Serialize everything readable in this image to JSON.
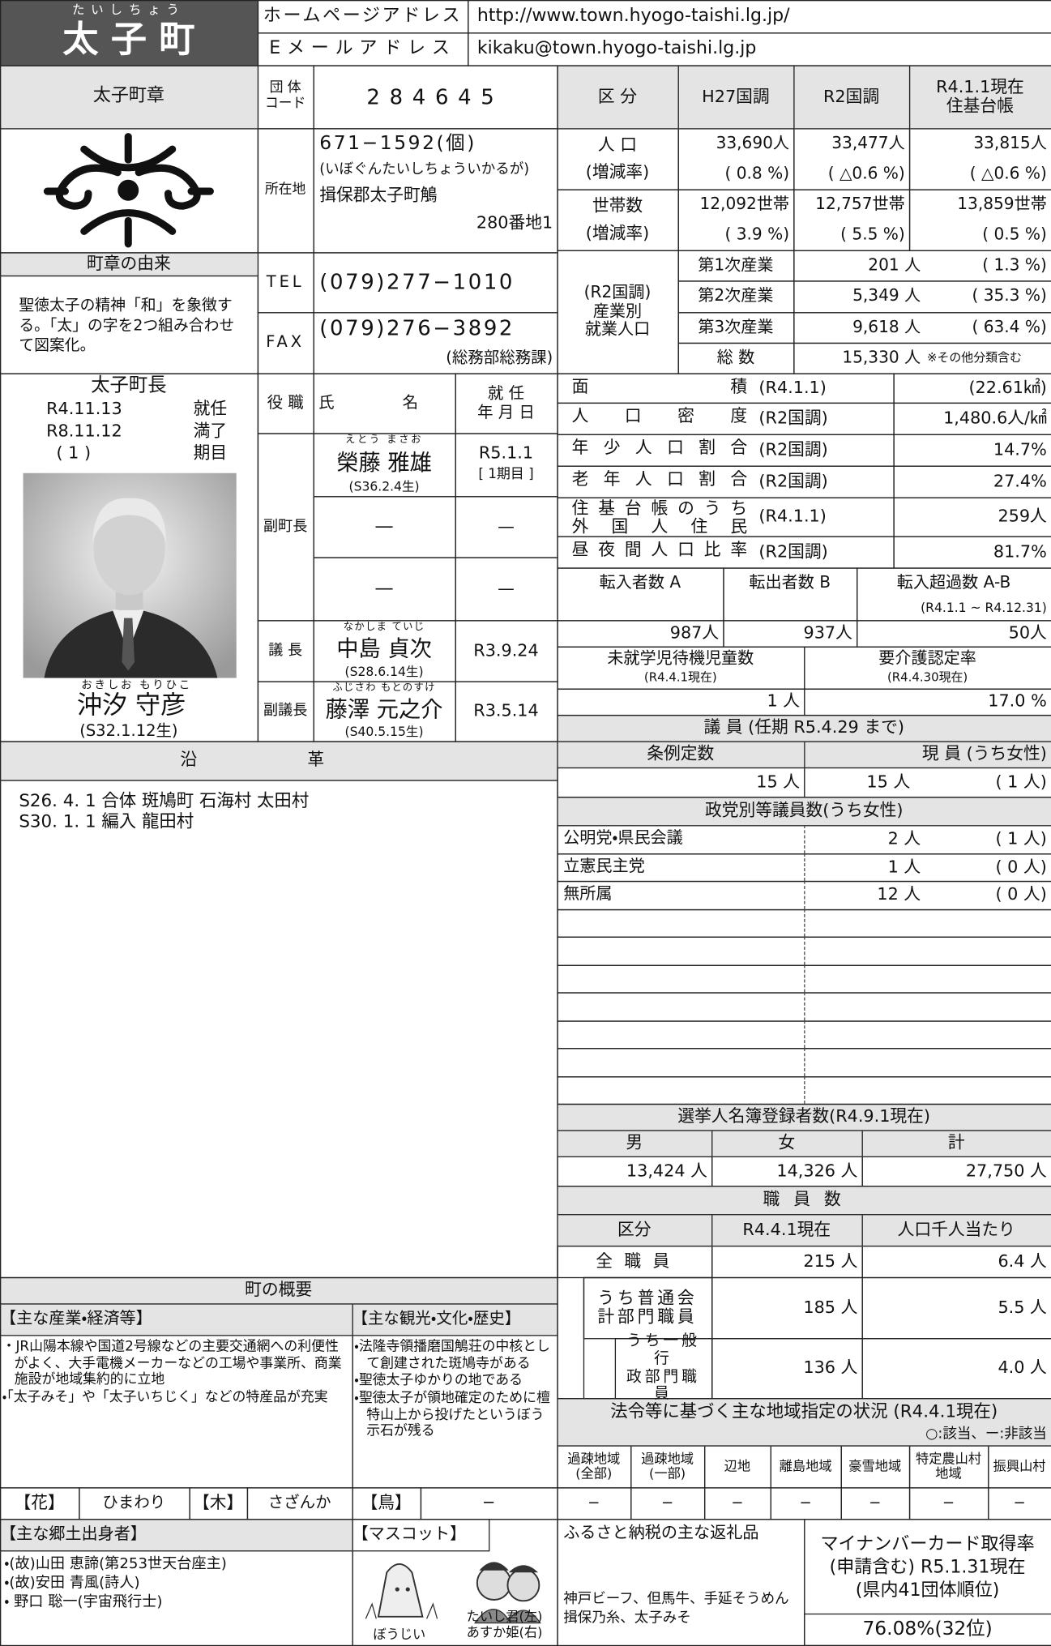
{
  "header": {
    "title_ruby": "たいしちょう",
    "title": "太 子 町",
    "homepage_label": "ホームページアドレス",
    "homepage": "http://www.town.hyogo-taishi.lg.jp/",
    "email_label": "Eメールアドレス",
    "email": "kikaku@town.hyogo-taishi.lg.jp"
  },
  "emblem": {
    "title": "太子町章",
    "origin_title": "町章の由来",
    "origin": "聖徳太子の精神「和」を象徴する。「太」の字を2つ組み合わせて図案化。"
  },
  "info": {
    "code_label": "団 体\nコード",
    "code": "284645",
    "address_label": "所在地",
    "postal": "671−1592(個)",
    "address_reading": "(いぼぐんたいしちょういかるが)",
    "address1": "揖保郡太子町鵤",
    "address2": "280番地1",
    "tel_label": "TEL",
    "tel": "(079)277−1010",
    "fax_label": "FAX",
    "fax": "(079)276−3892",
    "fax_note": "(総務部総務課)"
  },
  "population": {
    "headers": [
      "区 分",
      "H27国調",
      "R2国調",
      "R4.1.1現在\n住基台帳"
    ],
    "rows": [
      {
        "label": "人 口\n(増減率)",
        "values": [
          [
            "33,690人",
            "( 0.8 %)"
          ],
          [
            "33,477人",
            "( △0.6 %)"
          ],
          [
            "33,815人",
            "( △0.6 %)"
          ]
        ]
      },
      {
        "label": "世帯数\n(増減率)",
        "values": [
          [
            "12,092世帯",
            "( 3.9 %)"
          ],
          [
            "12,757世帯",
            "( 5.5 %)"
          ],
          [
            "13,859世帯",
            "( 0.5 %)"
          ]
        ]
      }
    ]
  },
  "industry": {
    "label": "(R2国調)\n産業別\n就業人口",
    "rows": [
      [
        "第1次産業",
        "201 人",
        "( 1.3 %)"
      ],
      [
        "第2次産業",
        "5,349 人",
        "( 35.3 %)"
      ],
      [
        "第3次産業",
        "9,618 人",
        "( 63.4 %)"
      ],
      [
        "総 数",
        "15,330 人",
        "※その他分類含む"
      ]
    ]
  },
  "mayor": {
    "title": "太子町長",
    "terms": [
      [
        "R4.11.13",
        "就任"
      ],
      [
        "R8.11.12",
        "満了"
      ],
      [
        "( 1 )",
        "期目"
      ]
    ],
    "name_ruby": "おきしお もりひこ",
    "name": "沖汐 守彦",
    "birth": "(S32.1.12生)"
  },
  "officials": {
    "headers": [
      "役 職",
      "氏 名",
      "就 任\n年 月 日"
    ],
    "vice_mayor": {
      "role": "副町長",
      "rows": [
        {
          "ruby": "えとう まさお",
          "name": "榮藤 雅雄",
          "birth": "(S36.2.4生)",
          "date": "R5.1.1",
          "term": "[ 1期目 ]"
        },
        {
          "name": "—",
          "date": "—"
        },
        {
          "name": "—",
          "date": "—"
        }
      ]
    },
    "chair": {
      "role": "議 長",
      "ruby": "なかしま ていじ",
      "name": "中島 貞次",
      "birth": "(S28.6.14生)",
      "date": "R3.9.24"
    },
    "vice_chair": {
      "role": "副議長",
      "ruby": "ふじさわ もとのすけ",
      "name": "藤澤 元之介",
      "birth": "(S40.5.15生)",
      "date": "R3.5.14"
    }
  },
  "stats": [
    [
      "面積",
      "(R4.1.1)",
      "(22.61㎢)"
    ],
    [
      "人口密度",
      "(R2国調)",
      "1,480.6人/㎢"
    ],
    [
      "年少人口割合",
      "(R2国調)",
      "14.7%"
    ],
    [
      "老年人口割合",
      "(R2国調)",
      "27.4%"
    ],
    [
      "住基台帳のうち\n外国人住民",
      "(R4.1.1)",
      "259人"
    ],
    [
      "昼夜間人口比率",
      "(R2国調)",
      "81.7%"
    ]
  ],
  "migration": {
    "headers": [
      "転入者数 A",
      "転出者数 B",
      "転入超過数 A-B"
    ],
    "note": "(R4.1.1 ~ R4.12.31)",
    "values": [
      "987人",
      "937人",
      "50人"
    ]
  },
  "childcare": {
    "headers": [
      "未就学児待機児童数",
      "要介護認定率"
    ],
    "notes": [
      "(R4.4.1現在)",
      "(R4.4.30現在)"
    ],
    "values": [
      "1 人",
      "17.0 %"
    ]
  },
  "assembly": {
    "title": "議 員 (任期 R5.4.29 まで)",
    "headers": [
      "条例定数",
      "現 員 (うち女性)"
    ],
    "fixed": "15 人",
    "current": "15 人",
    "current_women": "( 1 人)",
    "party_title": "政党別等議員数(うち女性)",
    "parties": [
      [
        "公明党・県民会議",
        "2 人",
        "( 1 人)"
      ],
      [
        "立憲民主党",
        "1 人",
        "( 0 人)"
      ],
      [
        "無所属",
        "12 人",
        "( 0 人)"
      ]
    ]
  },
  "voters": {
    "title": "選挙人名簿登録者数(R4.9.1現在)",
    "headers": [
      "男",
      "女",
      "計"
    ],
    "values": [
      "13,424 人",
      "14,326 人",
      "27,750 人"
    ]
  },
  "staff": {
    "title": "職 員 数",
    "headers": [
      "区分",
      "R4.4.1現在",
      "人口千人当たり"
    ],
    "rows": [
      [
        "全 職 員",
        "215 人",
        "6.4 人"
      ],
      [
        "うち普通会\n計部門職員",
        "185 人",
        "5.5 人"
      ],
      [
        "うち一般行\n政部門職員",
        "136 人",
        "4.0 人"
      ]
    ]
  },
  "history": {
    "title": "沿 革",
    "items": [
      "S26. 4. 1 合体 斑鳩町 石海村 太田村",
      "S30. 1. 1 編入 龍田村"
    ]
  },
  "overview": {
    "title": "町の概要",
    "industry_title": "【主な産業・経済等】",
    "industry": [
      "・JR山陽本線や国道2号線などの主要交通網への利便性がよく、大手電機メーカーなどの工場や事業所、商業施設が地域集約的に立地",
      "・「太子みそ」や「太子いちじく」などの特産品が充実"
    ],
    "tourism_title": "【主な観光・文化・歴史】",
    "tourism": [
      "・法隆寺領播磨国鵤荘の中核として創建された斑鳩寺がある",
      "・聖徳太子ゆかりの地である",
      "・聖徳太子が領地確定のために檀特山上から投げたというぼう示石が残る"
    ],
    "flower_label": "【花】",
    "flower": "ひまわり",
    "tree_label": "【木】",
    "tree": "さざんか",
    "bird_label": "【鳥】",
    "bird": "−",
    "people_title": "【主な郷土出身者】",
    "people": [
      "・(故)山田 恵諦(第253世天台座主)",
      "・(故)安田 青風(詩人)",
      "・ 野口 聡一(宇宙飛行士)"
    ],
    "mascot_title": "【マスコット】",
    "mascots": [
      "ぼうじい",
      "たいし君(左)\nあすか姫(右)"
    ]
  },
  "designations": {
    "title": "法令等に基づく主な地域指定の状況 (R4.4.1現在)",
    "legend": "○:該当、ー:非該当",
    "areas": [
      "過疎地域\n(全部)",
      "過疎地域\n(一部)",
      "辺地",
      "離島地域",
      "豪雪地域",
      "特定農山村\n地域",
      "振興山村"
    ],
    "values": [
      "−",
      "−",
      "−",
      "−",
      "−",
      "−",
      "−"
    ]
  },
  "furusato": {
    "title": "ふるさと納税の主な返礼品",
    "items": "神戸ビーフ、但馬牛、手延そうめん揖保乃糸、太子みそ"
  },
  "mynumber": {
    "title": "マイナンバーカード取得率\n(申請含む) R5.1.31現在\n(県内41団体順位)",
    "value": "76.08%(32位)"
  }
}
